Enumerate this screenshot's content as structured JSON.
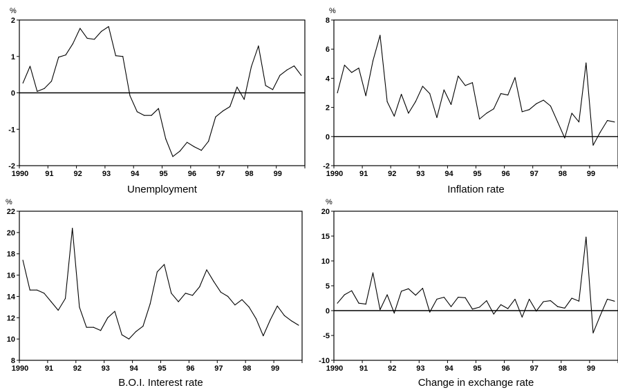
{
  "chart_data": [
    {
      "type": "line",
      "title": "Unemployment",
      "unit": "%",
      "ylim": [
        -2,
        2
      ],
      "yticks": [
        "2",
        "1",
        "0",
        "-1",
        "-2"
      ],
      "xlim": [
        1990,
        2000
      ],
      "xticks": [
        "1990",
        "91",
        "92",
        "93",
        "94",
        "95",
        "96",
        "97",
        "98",
        "99"
      ],
      "zero_line": true,
      "x": [
        1990.0,
        1990.25,
        1990.5,
        1990.75,
        1991.0,
        1991.25,
        1991.5,
        1991.75,
        1992.0,
        1992.25,
        1992.5,
        1992.75,
        1993.0,
        1993.25,
        1993.5,
        1993.75,
        1994.0,
        1994.25,
        1994.5,
        1994.75,
        1995.0,
        1995.25,
        1995.5,
        1995.75,
        1996.0,
        1996.25,
        1996.5,
        1996.75,
        1997.0,
        1997.25,
        1997.5,
        1997.75,
        1998.0,
        1998.25,
        1998.5,
        1998.75,
        1999.0,
        1999.25,
        1999.5,
        1999.75
      ],
      "values": [
        0.27,
        0.73,
        0.04,
        0.12,
        0.32,
        0.98,
        1.04,
        1.35,
        1.77,
        1.5,
        1.47,
        1.69,
        1.82,
        1.02,
        1.0,
        -0.08,
        -0.52,
        -0.62,
        -0.62,
        -0.43,
        -1.26,
        -1.75,
        -1.6,
        -1.36,
        -1.48,
        -1.58,
        -1.33,
        -0.66,
        -0.5,
        -0.38,
        0.16,
        -0.18,
        0.72,
        1.29,
        0.2,
        0.09,
        0.48,
        0.63,
        0.74,
        0.48
      ]
    },
    {
      "type": "line",
      "title": "Inflation rate",
      "unit": "%",
      "ylim": [
        -2,
        8
      ],
      "yticks": [
        "8",
        "6",
        "4",
        "2",
        "0",
        "-2"
      ],
      "xlim": [
        1990,
        2000
      ],
      "xticks": [
        "1990",
        "91",
        "92",
        "93",
        "94",
        "95",
        "96",
        "97",
        "98",
        "99"
      ],
      "zero_line": true,
      "x": [
        1990.0,
        1990.25,
        1990.5,
        1990.75,
        1991.0,
        1991.25,
        1991.5,
        1991.75,
        1992.0,
        1992.25,
        1992.5,
        1992.75,
        1993.0,
        1993.25,
        1993.5,
        1993.75,
        1994.0,
        1994.25,
        1994.5,
        1994.75,
        1995.0,
        1995.25,
        1995.5,
        1995.75,
        1996.0,
        1996.25,
        1996.5,
        1996.75,
        1997.0,
        1997.25,
        1997.5,
        1997.75,
        1998.0,
        1998.25,
        1998.5,
        1998.75,
        1999.0,
        1999.25,
        1999.5,
        1999.75
      ],
      "values": [
        3.0,
        4.9,
        4.4,
        4.7,
        2.8,
        5.2,
        6.95,
        2.4,
        1.4,
        2.9,
        1.6,
        2.4,
        3.45,
        2.95,
        1.3,
        3.2,
        2.2,
        4.15,
        3.5,
        3.7,
        1.2,
        1.6,
        1.9,
        2.95,
        2.85,
        4.05,
        1.7,
        1.85,
        2.25,
        2.5,
        2.1,
        1.0,
        -0.1,
        1.6,
        1.0,
        5.05,
        -0.6,
        0.3,
        1.1,
        1.0
      ]
    },
    {
      "type": "line",
      "title": "B.O.I. Interest rate",
      "unit": "%",
      "ylim": [
        8,
        22
      ],
      "yticks": [
        "22",
        "20",
        "18",
        "16",
        "14",
        "12",
        "10",
        "8"
      ],
      "xlim": [
        1990,
        2000
      ],
      "xticks": [
        "1990",
        "91",
        "92",
        "93",
        "94",
        "95",
        "96",
        "97",
        "98",
        "99"
      ],
      "zero_line": false,
      "x": [
        1990.0,
        1990.25,
        1990.5,
        1990.75,
        1991.0,
        1991.25,
        1991.5,
        1991.75,
        1992.0,
        1992.25,
        1992.5,
        1992.75,
        1993.0,
        1993.25,
        1993.5,
        1993.75,
        1994.0,
        1994.25,
        1994.5,
        1994.75,
        1995.0,
        1995.25,
        1995.5,
        1995.75,
        1996.0,
        1996.25,
        1996.5,
        1996.75,
        1997.0,
        1997.25,
        1997.5,
        1997.75,
        1998.0,
        1998.25,
        1998.5,
        1998.75,
        1999.0,
        1999.25,
        1999.5,
        1999.75
      ],
      "values": [
        17.4,
        14.6,
        14.6,
        14.3,
        13.5,
        12.7,
        13.8,
        20.4,
        13.0,
        11.1,
        11.1,
        10.8,
        12.0,
        12.6,
        10.4,
        10.0,
        10.7,
        11.2,
        13.3,
        16.3,
        17.0,
        14.3,
        13.5,
        14.3,
        14.1,
        14.9,
        16.5,
        15.4,
        14.4,
        14.0,
        13.2,
        13.7,
        13.0,
        11.9,
        10.3,
        11.8,
        13.1,
        12.2,
        11.7,
        11.3
      ]
    },
    {
      "type": "line",
      "title": "Change in exchange rate",
      "unit": "%",
      "ylim": [
        -10,
        20
      ],
      "yticks": [
        "20",
        "15",
        "10",
        "5",
        "0",
        "-5",
        "-10"
      ],
      "xlim": [
        1990,
        2000
      ],
      "xticks": [
        "1990",
        "91",
        "92",
        "93",
        "94",
        "95",
        "96",
        "97",
        "98",
        "99"
      ],
      "zero_line": true,
      "x": [
        1990.0,
        1990.25,
        1990.5,
        1990.75,
        1991.0,
        1991.25,
        1991.5,
        1991.75,
        1992.0,
        1992.25,
        1992.5,
        1992.75,
        1993.0,
        1993.25,
        1993.5,
        1993.75,
        1994.0,
        1994.25,
        1994.5,
        1994.75,
        1995.0,
        1995.25,
        1995.5,
        1995.75,
        1996.0,
        1996.25,
        1996.5,
        1996.75,
        1997.0,
        1997.25,
        1997.5,
        1997.75,
        1998.0,
        1998.25,
        1998.5,
        1998.75,
        1999.0,
        1999.25,
        1999.5,
        1999.75
      ],
      "values": [
        1.5,
        3.2,
        4.0,
        1.5,
        1.3,
        7.6,
        0.2,
        3.2,
        -0.5,
        3.9,
        4.4,
        3.1,
        4.5,
        -0.3,
        2.3,
        2.7,
        0.8,
        2.7,
        2.6,
        0.3,
        0.7,
        2.0,
        -0.7,
        1.2,
        0.4,
        2.3,
        -1.3,
        2.3,
        -0.1,
        1.8,
        2.0,
        0.8,
        0.5,
        2.5,
        1.9,
        14.8,
        -4.5,
        -1.0,
        2.3,
        1.9
      ]
    }
  ]
}
